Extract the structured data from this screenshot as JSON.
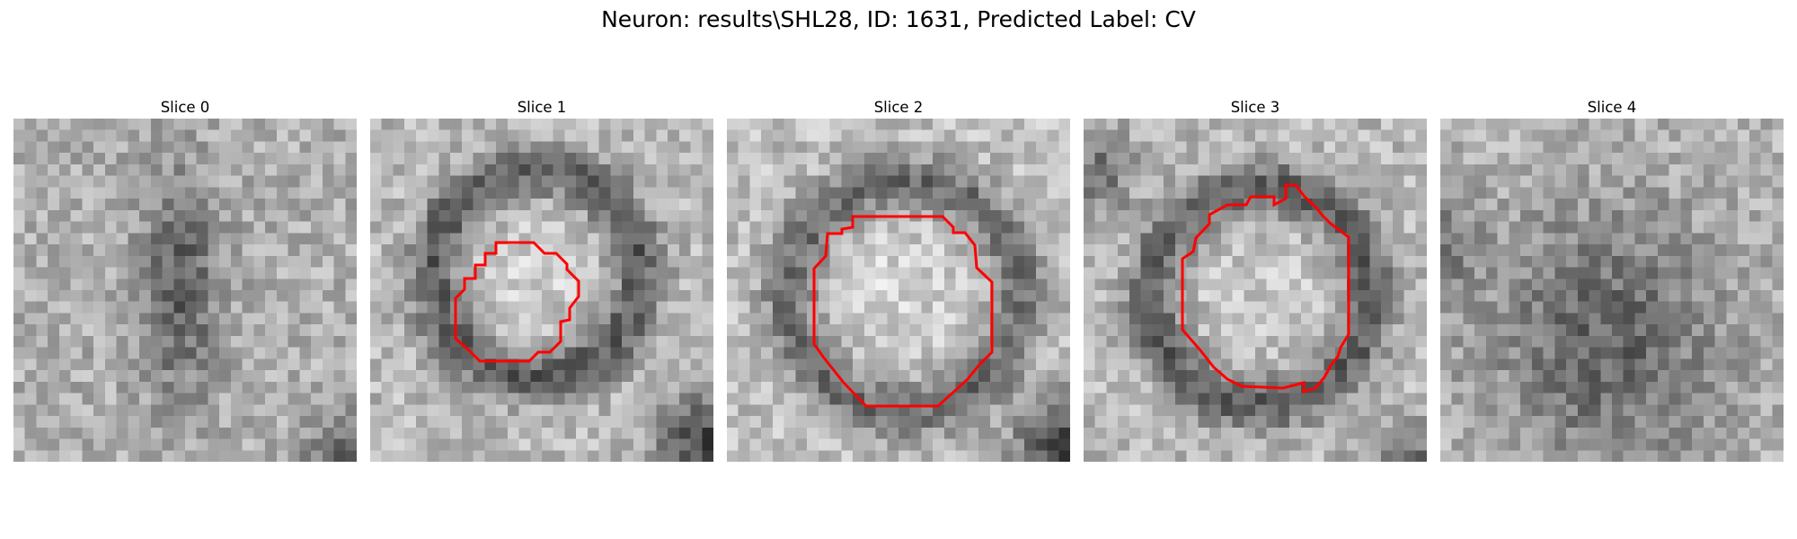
{
  "figure": {
    "title": "Neuron: results\\SHL28, ID: 1631, Predicted Label: CV",
    "colormap": "gray",
    "contour_color": "#ff0000"
  },
  "slices": [
    {
      "title": "Slice 0",
      "has_contour": false
    },
    {
      "title": "Slice 1",
      "has_contour": true
    },
    {
      "title": "Slice 2",
      "has_contour": true
    },
    {
      "title": "Slice 3",
      "has_contour": true
    },
    {
      "title": "Slice 4",
      "has_contour": false
    }
  ]
}
